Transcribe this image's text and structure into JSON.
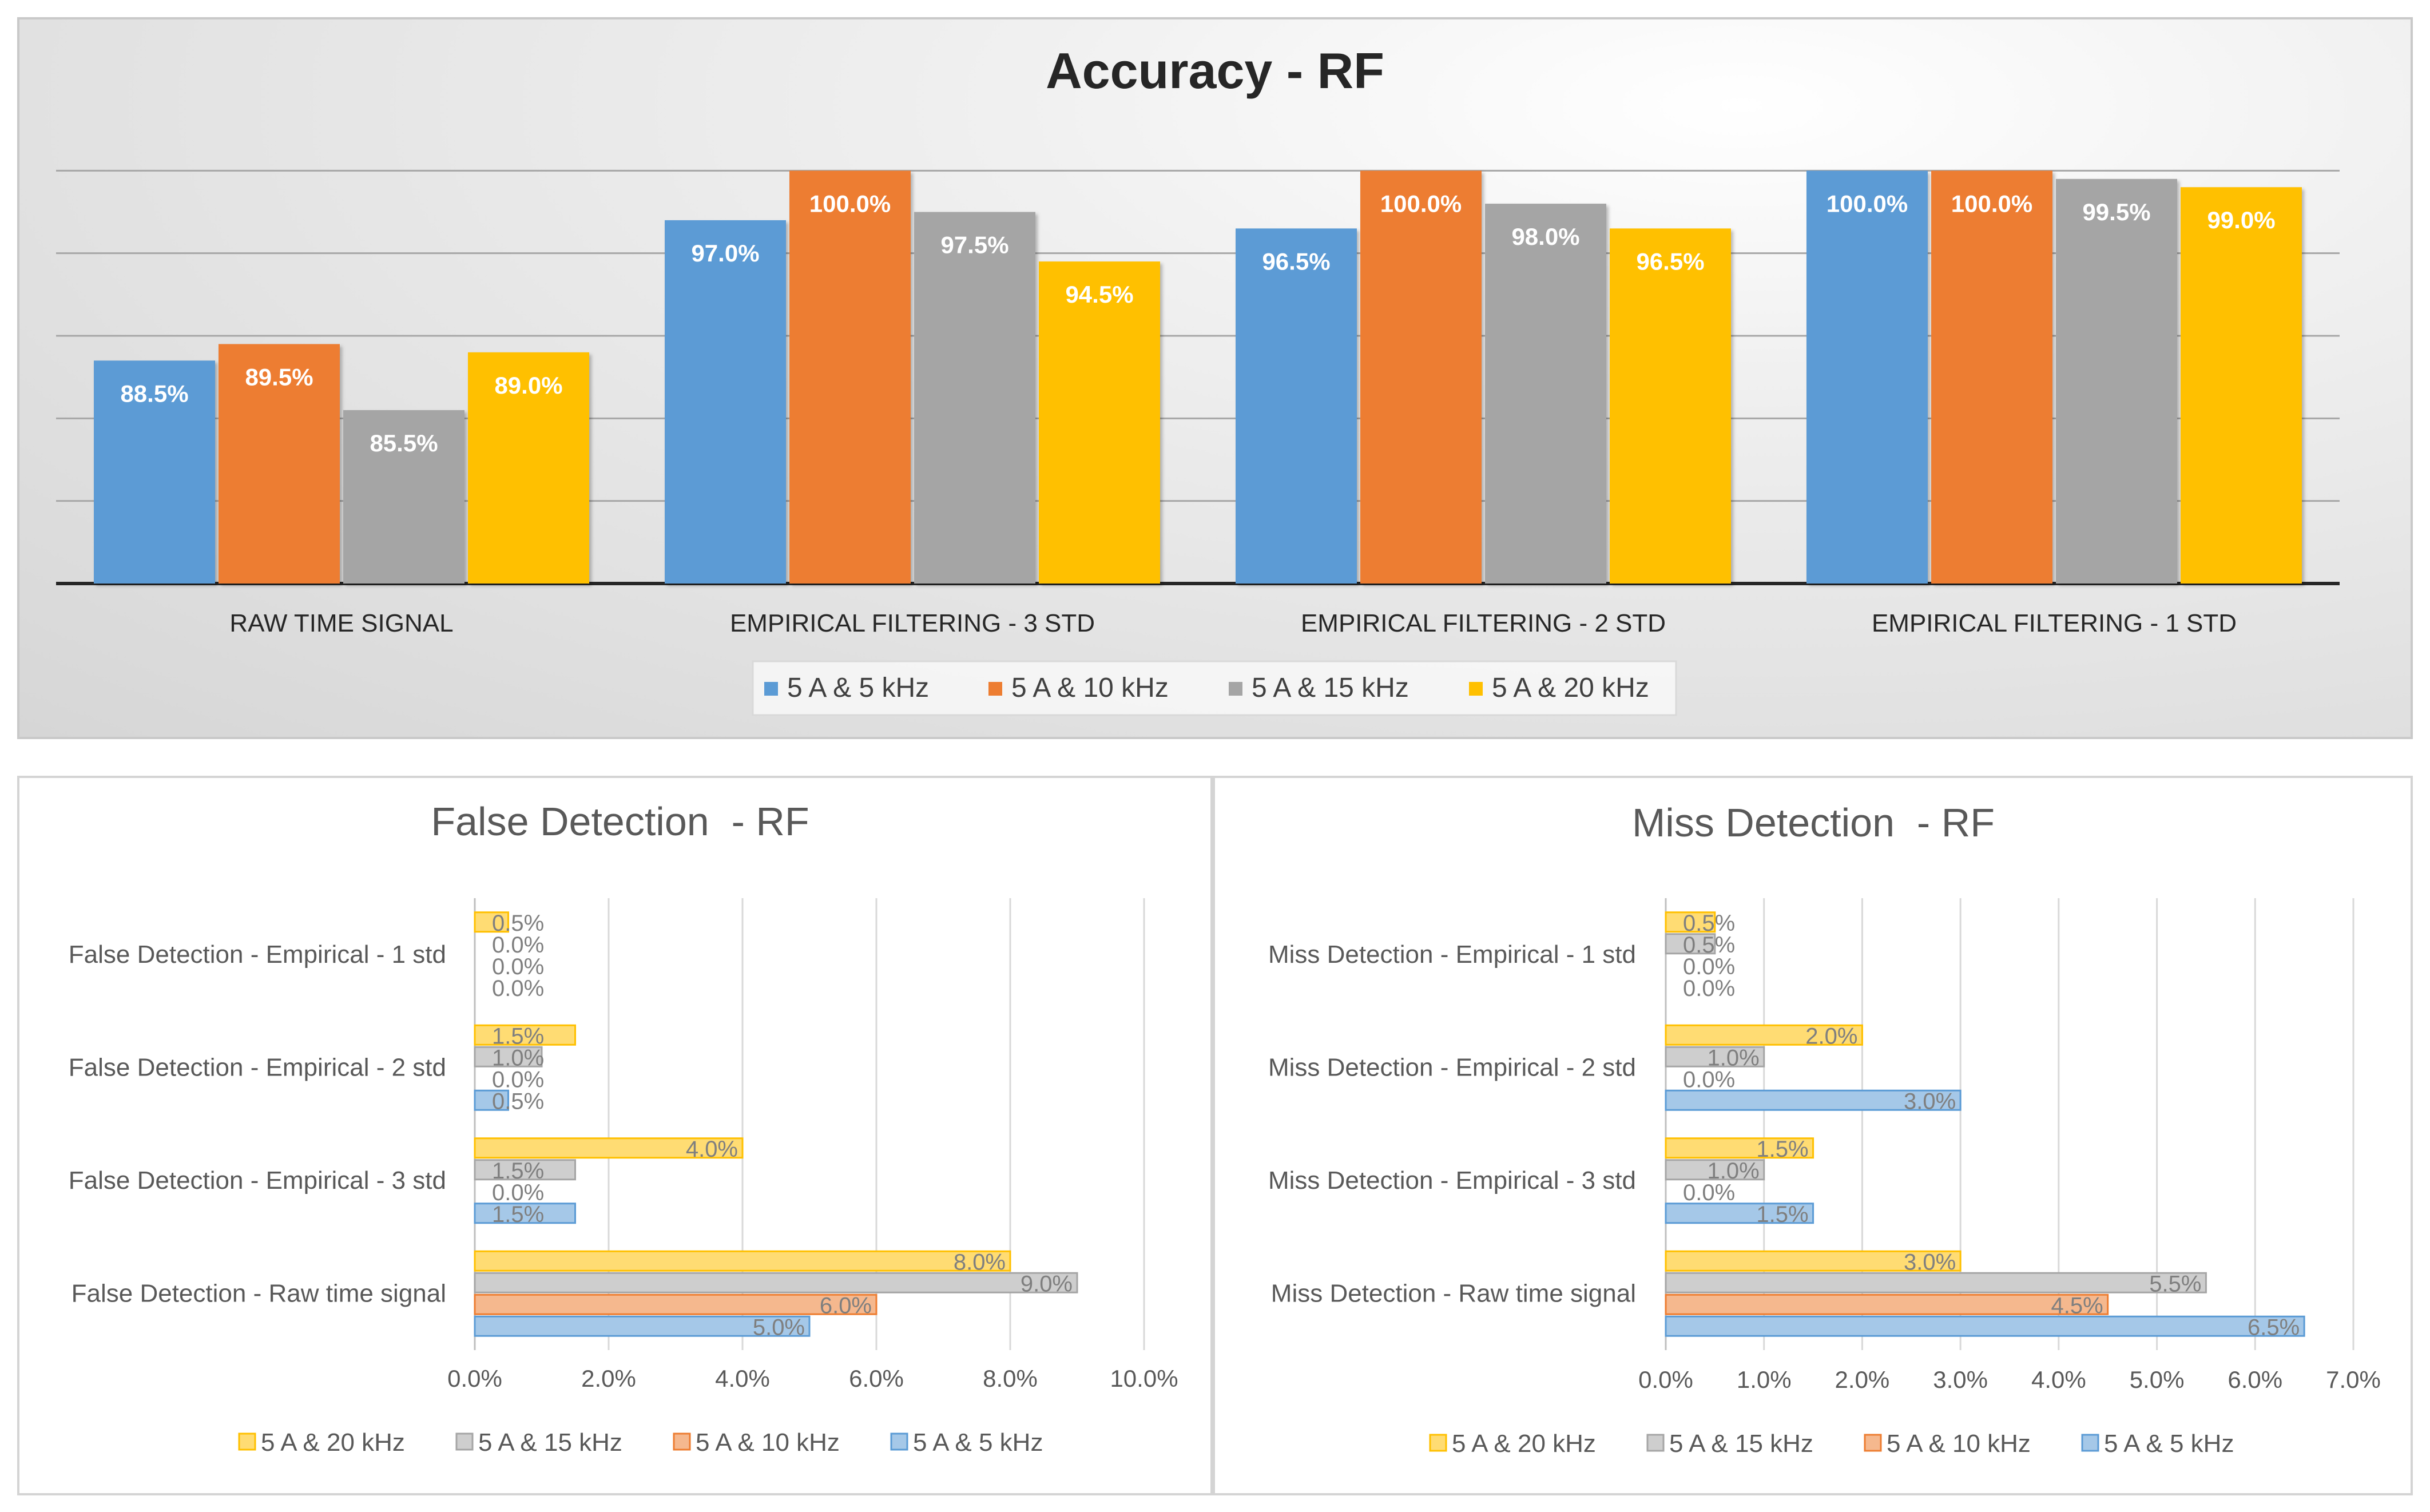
{
  "colors": {
    "series_5khz": "#5b9bd5",
    "series_10khz": "#ed7d31",
    "series_15khz": "#a5a5a5",
    "series_20khz": "#ffc000"
  },
  "chart_data": [
    {
      "id": "accuracy",
      "type": "bar",
      "title": "Accuracy - RF",
      "categories": [
        "RAW TIME SIGNAL",
        "EMPIRICAL FILTERING - 3 STD",
        "EMPIRICAL FILTERING - 2 STD",
        "EMPIRICAL FILTERING - 1 STD"
      ],
      "series": [
        {
          "name": "5 A & 5 kHz",
          "values": [
            88.5,
            97.0,
            96.5,
            100.0
          ],
          "labels": [
            "88.5%",
            "97.0%",
            "96.5%",
            "100.0%"
          ]
        },
        {
          "name": "5 A & 10 kHz",
          "values": [
            89.5,
            100.0,
            100.0,
            100.0
          ],
          "labels": [
            "89.5%",
            "100.0%",
            "100.0%",
            "100.0%"
          ]
        },
        {
          "name": "5 A & 15 kHz",
          "values": [
            85.5,
            97.5,
            98.0,
            99.5
          ],
          "labels": [
            "85.5%",
            "97.5%",
            "98.0%",
            "99.5%"
          ]
        },
        {
          "name": "5 A & 20 kHz",
          "values": [
            89.0,
            94.5,
            96.5,
            99.0
          ],
          "labels": [
            "89.0%",
            "94.5%",
            "96.5%",
            "99.0%"
          ]
        }
      ],
      "ylim": [
        75,
        105
      ],
      "grid": true,
      "legend": "bottom"
    },
    {
      "id": "false_detection",
      "type": "bar-horizontal",
      "title": "False Detection  - RF",
      "categories": [
        "False Detection - Raw time signal",
        "False Detection - Empirical - 3 std",
        "False Detection - Empirical - 2 std",
        "False Detection - Empirical - 1 std"
      ],
      "series": [
        {
          "name": "5 A & 5 kHz",
          "values": [
            5.0,
            1.5,
            0.5,
            0.0
          ],
          "labels": [
            "5.0%",
            "1.5%",
            "0.5%",
            "0.0%"
          ]
        },
        {
          "name": "5 A & 10 kHz",
          "values": [
            6.0,
            0.0,
            0.0,
            0.0
          ],
          "labels": [
            "6.0%",
            "0.0%",
            "0.0%",
            "0.0%"
          ]
        },
        {
          "name": "5 A & 15 kHz",
          "values": [
            9.0,
            1.5,
            1.0,
            0.0
          ],
          "labels": [
            "9.0%",
            "1.5%",
            "1.0%",
            "0.0%"
          ]
        },
        {
          "name": "5 A & 20 kHz",
          "values": [
            8.0,
            4.0,
            1.5,
            0.5
          ],
          "labels": [
            "8.0%",
            "4.0%",
            "1.5%",
            "0.5%"
          ]
        }
      ],
      "xlim": [
        0,
        10
      ],
      "xticks": [
        "0.0%",
        "2.0%",
        "4.0%",
        "6.0%",
        "8.0%",
        "10.0%"
      ],
      "xtick_values": [
        0,
        2,
        4,
        6,
        8,
        10
      ],
      "legend_order": [
        "5 A & 20 kHz",
        "5 A & 15 kHz",
        "5 A & 10 kHz",
        "5 A & 5 kHz"
      ],
      "legend": "bottom"
    },
    {
      "id": "miss_detection",
      "type": "bar-horizontal",
      "title": "Miss Detection  - RF",
      "categories": [
        "Miss Detection - Raw time signal",
        "Miss Detection - Empirical - 3 std",
        "Miss Detection - Empirical - 2 std",
        "Miss Detection - Empirical - 1 std"
      ],
      "series": [
        {
          "name": "5 A & 5 kHz",
          "values": [
            6.5,
            1.5,
            3.0,
            0.0
          ],
          "labels": [
            "6.5%",
            "1.5%",
            "3.0%",
            "0.0%"
          ]
        },
        {
          "name": "5 A & 10 kHz",
          "values": [
            4.5,
            0.0,
            0.0,
            0.0
          ],
          "labels": [
            "4.5%",
            "0.0%",
            "0.0%",
            "0.0%"
          ]
        },
        {
          "name": "5 A & 15 kHz",
          "values": [
            5.5,
            1.0,
            1.0,
            0.5
          ],
          "labels": [
            "5.5%",
            "1.0%",
            "1.0%",
            "0.5%"
          ]
        },
        {
          "name": "5 A & 20 kHz",
          "values": [
            3.0,
            1.5,
            2.0,
            0.5
          ],
          "labels": [
            "3.0%",
            "1.5%",
            "2.0%",
            "0.5%"
          ]
        }
      ],
      "xlim": [
        0,
        7
      ],
      "xticks": [
        "0.0%",
        "1.0%",
        "2.0%",
        "3.0%",
        "4.0%",
        "5.0%",
        "6.0%",
        "7.0%"
      ],
      "xtick_values": [
        0,
        1,
        2,
        3,
        4,
        5,
        6,
        7
      ],
      "legend_order": [
        "5 A & 20 kHz",
        "5 A & 15 kHz",
        "5 A & 10 kHz",
        "5 A & 5 kHz"
      ],
      "legend": "bottom"
    }
  ]
}
